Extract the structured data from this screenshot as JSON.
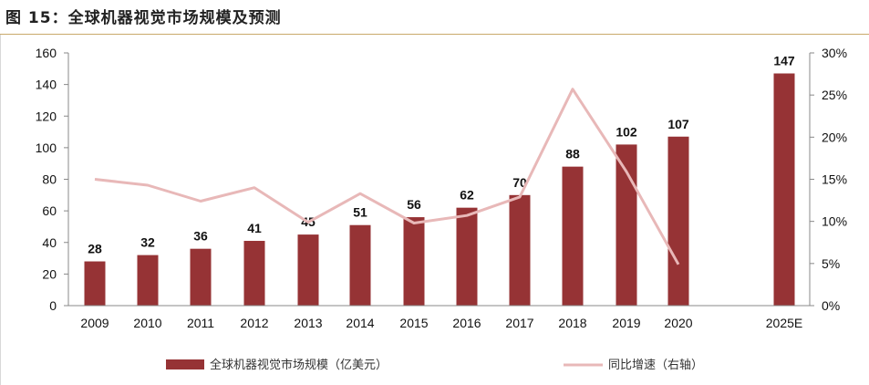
{
  "figure": {
    "title": "图 15：全球机器视觉市场规模及预测"
  },
  "colors": {
    "bar": "#963335",
    "line": "#e8b8b8",
    "title_rule": "#c9a96b"
  },
  "chart_data": {
    "type": "bar",
    "categories": [
      "2009",
      "2010",
      "2011",
      "2012",
      "2013",
      "2014",
      "2015",
      "2016",
      "2017",
      "2018",
      "2019",
      "2020",
      "2025E"
    ],
    "series": [
      {
        "name": "全球机器视觉市场规模（亿美元）",
        "type": "bar",
        "axis": "left",
        "values": [
          28,
          32,
          36,
          41,
          45,
          51,
          56,
          62,
          70,
          88,
          102,
          107,
          147
        ],
        "data_labels": [
          "28",
          "32",
          "36",
          "41",
          "45",
          "51",
          "56",
          "62",
          "70",
          "88",
          "102",
          "107",
          "147"
        ]
      },
      {
        "name": "同比增速（右轴）",
        "type": "line",
        "axis": "right",
        "values": [
          15.0,
          14.3,
          12.4,
          14.0,
          9.9,
          13.3,
          9.8,
          10.7,
          12.9,
          25.7,
          15.9,
          4.9,
          null
        ]
      }
    ],
    "y_left": {
      "lim": [
        0,
        160
      ],
      "ticks": [
        "0",
        "20",
        "40",
        "60",
        "80",
        "100",
        "120",
        "140",
        "160"
      ]
    },
    "y_right": {
      "lim": [
        0,
        30
      ],
      "ticks": [
        "0%",
        "5%",
        "10%",
        "15%",
        "20%",
        "25%",
        "30%"
      ]
    },
    "grid": false,
    "legend_position": "bottom"
  }
}
